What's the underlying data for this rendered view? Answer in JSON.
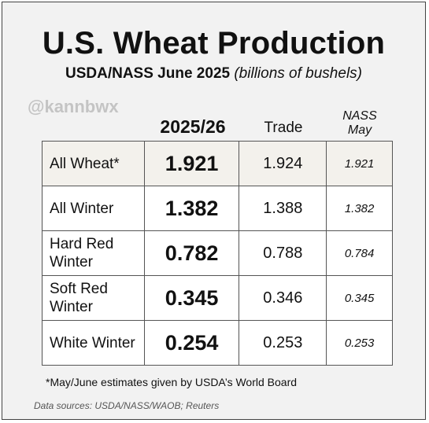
{
  "title": "U.S. Wheat Production",
  "subtitle": {
    "bold": "USDA/NASS June 2025",
    "italic": "(billions of bushels)"
  },
  "watermark": "@kannbwx",
  "chart_data": {
    "type": "table",
    "columns": [
      {
        "key": "estimate",
        "header": "2025/26"
      },
      {
        "key": "trade",
        "header": "Trade"
      },
      {
        "key": "nass_may",
        "header_lines": [
          "NASS",
          "May"
        ]
      }
    ],
    "rows": [
      {
        "label": "All Wheat*",
        "highlight": true,
        "estimate": "1.921",
        "trade": "1.924",
        "nass_may": "1.921"
      },
      {
        "label": "All Winter",
        "highlight": false,
        "estimate": "1.382",
        "trade": "1.388",
        "nass_may": "1.382"
      },
      {
        "label": "Hard Red Winter",
        "highlight": false,
        "estimate": "0.782",
        "trade": "0.788",
        "nass_may": "0.784"
      },
      {
        "label": "Soft Red Winter",
        "highlight": false,
        "estimate": "0.345",
        "trade": "0.346",
        "nass_may": "0.345"
      },
      {
        "label": "White Winter",
        "highlight": false,
        "estimate": "0.254",
        "trade": "0.253",
        "nass_may": "0.253"
      }
    ]
  },
  "footnote": "*May/June estimates given by USDA’s World Board",
  "sources": "Data sources: USDA/NASS/WAOB; Reuters",
  "colors": {
    "highlight_row": "#f3f1ec",
    "background": "#f2f2f2",
    "watermark": "#c4c4c4"
  }
}
